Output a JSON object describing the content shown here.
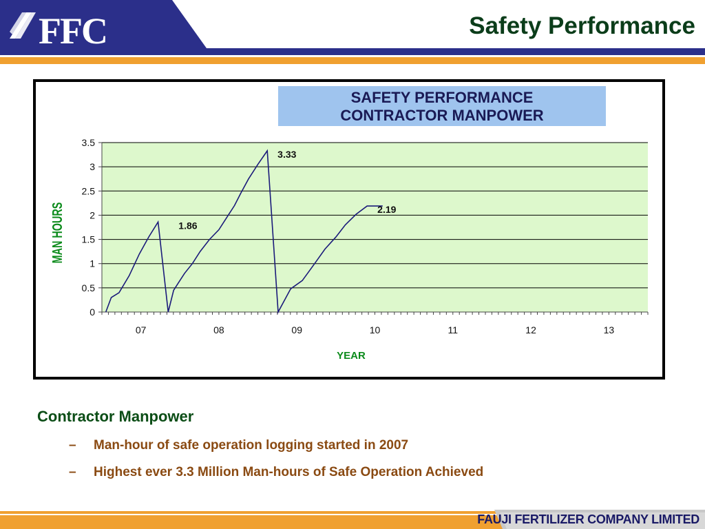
{
  "slide": {
    "title": "Safety Performance",
    "logo_text": "FFC",
    "footer": "FAUJI FERTILIZER COMPANY LIMITED"
  },
  "colors": {
    "brand_blue": "#2b2f8a",
    "accent_orange": "#f0a030",
    "title_green": "#0b3d1a",
    "plot_bg": "#ddf8cc",
    "series_line": "#1a1a7a",
    "axis_label_green": "#0a8a1a",
    "bullet_brown": "#8a4a12"
  },
  "chart_data": {
    "type": "line",
    "title": "SAFETY PERFORMANCE\nCONTRACTOR MANPOWER",
    "title_lines": [
      "SAFETY PERFORMANCE",
      "CONTRACTOR MANPOWER"
    ],
    "xlabel": "YEAR",
    "ylabel": "MAN HOURS",
    "ylim": [
      0,
      3.5
    ],
    "yticks": [
      0,
      0.5,
      1,
      1.5,
      2,
      2.5,
      3,
      3.5
    ],
    "ytick_labels": [
      "0",
      "0.5",
      "1",
      "1.5",
      "2",
      "2.5",
      "3",
      "3.5"
    ],
    "xlim": [
      6.5,
      13.5
    ],
    "xticks": [
      7,
      8,
      9,
      10,
      11,
      12,
      13
    ],
    "xtick_labels": [
      "07",
      "08",
      "09",
      "10",
      "11",
      "12",
      "13"
    ],
    "grid": true,
    "series": [
      {
        "x": [
          6.55,
          6.62,
          6.72,
          6.85,
          6.98,
          7.1,
          7.22,
          7.35,
          7.42,
          7.48,
          7.56,
          7.66,
          7.76,
          7.88,
          8.0,
          8.12,
          8.2,
          8.28,
          8.38,
          8.5,
          8.62,
          8.76,
          8.86,
          8.92,
          9.07,
          9.16,
          9.25,
          9.36,
          9.5,
          9.62,
          9.76,
          9.9,
          10.04,
          10.1
        ],
        "y": [
          0.0,
          0.3,
          0.4,
          0.75,
          1.2,
          1.55,
          1.86,
          0.0,
          0.45,
          0.6,
          0.8,
          1.0,
          1.25,
          1.5,
          1.7,
          2.0,
          2.2,
          2.45,
          2.75,
          3.05,
          3.33,
          0.0,
          0.3,
          0.48,
          0.65,
          0.85,
          1.05,
          1.3,
          1.55,
          1.8,
          2.02,
          2.19,
          2.19,
          2.19
        ]
      }
    ],
    "annotations": [
      {
        "text": "1.86",
        "x": 7.35,
        "y": 1.86
      },
      {
        "text": "3.33",
        "x": 8.62,
        "y": 3.33
      },
      {
        "text": "2.19",
        "x": 9.9,
        "y": 2.19
      }
    ]
  },
  "content": {
    "heading": "Contractor Manpower",
    "bullets": [
      "Man-hour of safe operation logging started in 2007",
      "Highest ever 3.3 Million Man-hours of Safe Operation  Achieved"
    ],
    "bullet_marker": "–"
  }
}
